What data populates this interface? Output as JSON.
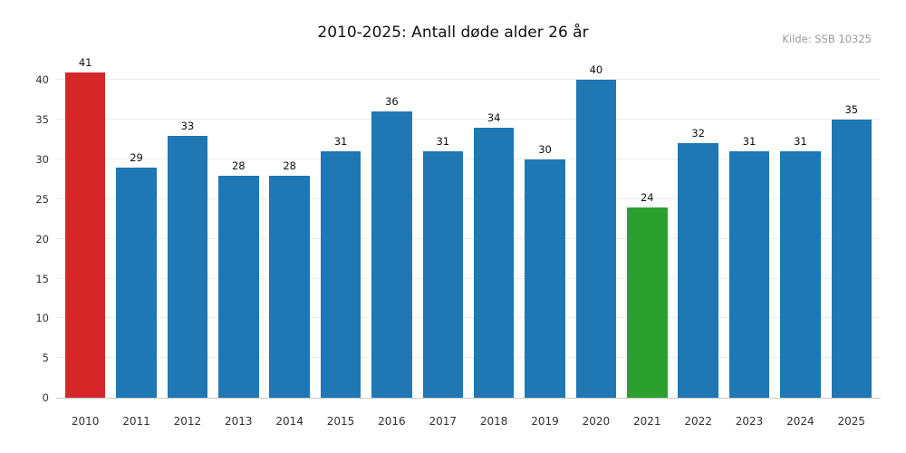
{
  "header": {
    "title": "2010-2025: Antall døde alder 26 år",
    "source": "Kilde: SSB 10325"
  },
  "chart_data": {
    "type": "bar",
    "title": "2010-2025: Antall døde alder 26 år",
    "source_annotation": "Kilde: SSB 10325",
    "categories": [
      "2010",
      "2011",
      "2012",
      "2013",
      "2014",
      "2015",
      "2016",
      "2017",
      "2018",
      "2019",
      "2020",
      "2021",
      "2022",
      "2023",
      "2024",
      "2025"
    ],
    "values": [
      41,
      29,
      33,
      28,
      28,
      31,
      36,
      31,
      34,
      30,
      40,
      24,
      32,
      31,
      31,
      35
    ],
    "bar_colors": [
      "#d62728",
      "#1f77b4",
      "#1f77b4",
      "#1f77b4",
      "#1f77b4",
      "#1f77b4",
      "#1f77b4",
      "#1f77b4",
      "#1f77b4",
      "#1f77b4",
      "#1f77b4",
      "#2ca02c",
      "#1f77b4",
      "#1f77b4",
      "#1f77b4",
      "#1f77b4"
    ],
    "color_legend": {
      "default": "#1f77b4",
      "max_highlight": "#d62728",
      "min_highlight": "#2ca02c"
    },
    "xlabel": "",
    "ylabel": "",
    "ylim": [
      0,
      43
    ],
    "yticks": [
      0,
      5,
      10,
      15,
      20,
      25,
      30,
      35,
      40
    ],
    "grid": true,
    "legend_position": "none",
    "data_labels": true
  }
}
